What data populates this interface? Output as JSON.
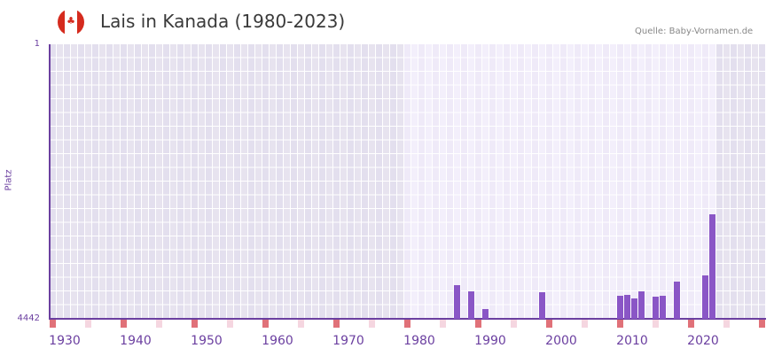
{
  "header": {
    "title": "Lais in Kanada (1980-2023)",
    "source": "Quelle: Baby-Vornamen.de",
    "flag_icon": "canada-flag-icon"
  },
  "axes": {
    "y_top_label": "1",
    "y_bottom_label": "4442",
    "y_title": "Platz",
    "x_ticks": [
      "1930",
      "1940",
      "1950",
      "1960",
      "1970",
      "1980",
      "1990",
      "2000",
      "2010",
      "2020"
    ]
  },
  "colors": {
    "bar": "#8a56c6",
    "axis": "#6b3fa0",
    "highlight_bg": "#efeaf8",
    "outside_bg": "#e3dfee",
    "marker_strong": "#e07179",
    "marker_light": "#f5d6e0"
  },
  "chart_data": {
    "type": "bar",
    "title": "Lais in Kanada (1980-2023)",
    "xlabel": "",
    "ylabel": "Platz",
    "ylim": [
      4442,
      1
    ],
    "y_inverted": true,
    "x_range": [
      1930,
      2030
    ],
    "highlight_range": [
      1980,
      2023
    ],
    "grid": true,
    "categories": [
      1987,
      1989,
      1991,
      1999,
      2010,
      2011,
      2012,
      2013,
      2015,
      2016,
      2018,
      2022,
      2023
    ],
    "values": [
      3900,
      4000,
      4290,
      4010,
      4070,
      4050,
      4110,
      4000,
      4080,
      4070,
      3840,
      3740,
      2750
    ]
  }
}
